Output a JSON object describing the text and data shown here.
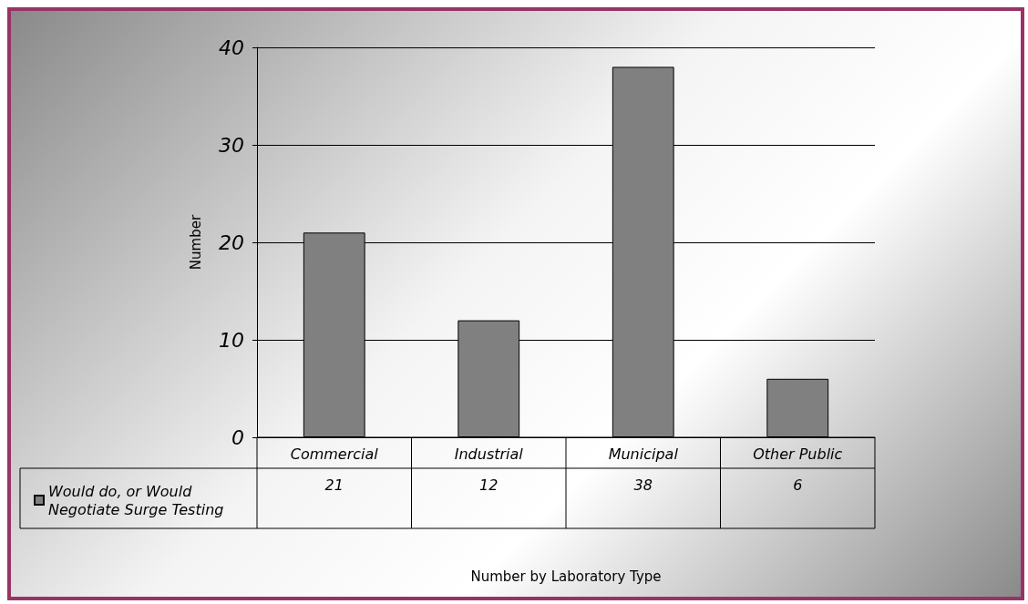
{
  "chart_data": {
    "type": "bar",
    "ylabel": "Number",
    "annotations": [
      "Number by Laboratory Type"
    ],
    "categories": [
      "Commercial",
      "Industrial",
      "Municipal",
      "Other Public"
    ],
    "series": [
      {
        "name": "Would do, or Would Negotiate Surge Testing",
        "color": "#808080",
        "values": [
          21,
          12,
          38,
          6
        ]
      }
    ],
    "ylim": [
      0,
      40
    ],
    "yticks": [
      0,
      10,
      20,
      30,
      40
    ],
    "grid": "y",
    "legend": "bottom left",
    "data_labels": true
  }
}
